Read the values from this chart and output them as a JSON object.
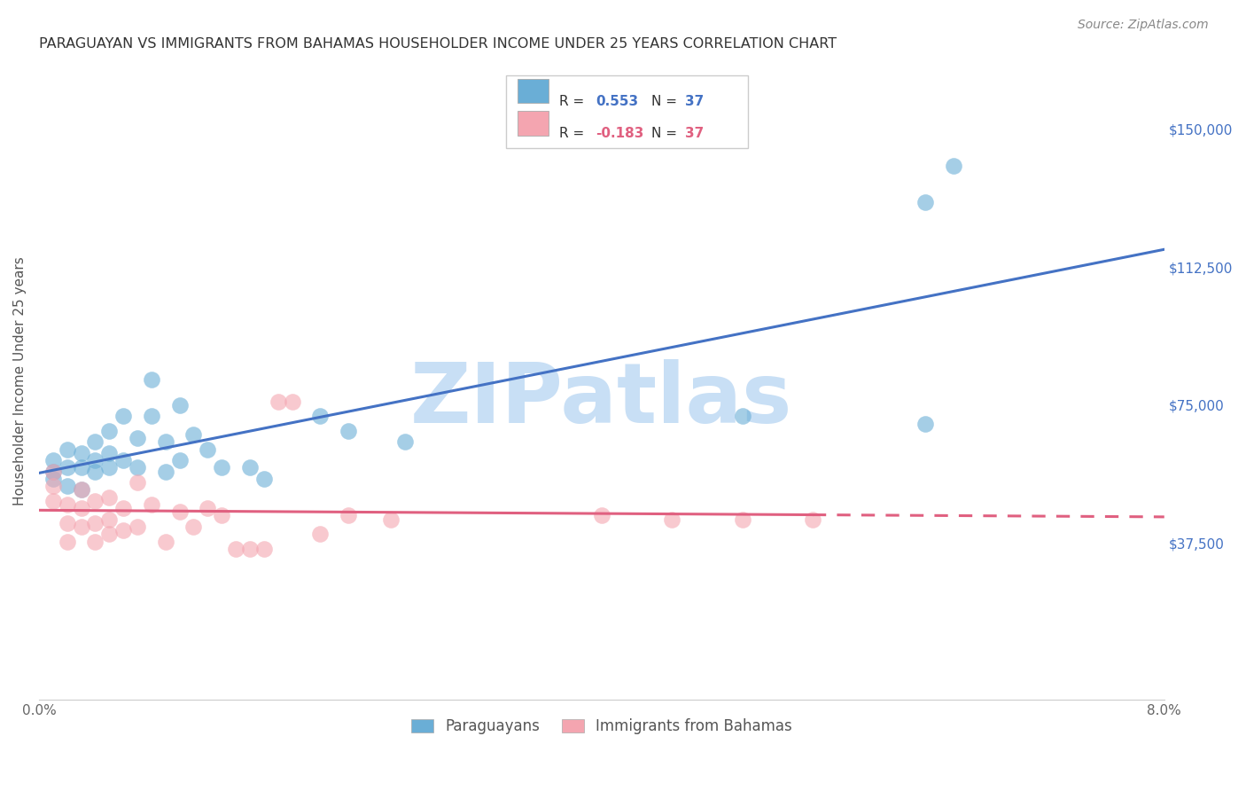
{
  "title": "PARAGUAYAN VS IMMIGRANTS FROM BAHAMAS HOUSEHOLDER INCOME UNDER 25 YEARS CORRELATION CHART",
  "source": "Source: ZipAtlas.com",
  "ylabel": "Householder Income Under 25 years",
  "x_min": 0.0,
  "x_max": 0.08,
  "y_min": -5000,
  "y_max": 168000,
  "x_ticks": [
    0.0,
    0.01,
    0.02,
    0.03,
    0.04,
    0.05,
    0.06,
    0.07,
    0.08
  ],
  "x_tick_labels": [
    "0.0%",
    "",
    "",
    "",
    "",
    "",
    "",
    "",
    "8.0%"
  ],
  "y_tick_vals": [
    37500,
    75000,
    112500,
    150000
  ],
  "y_tick_labels": [
    "$37,500",
    "$75,000",
    "$112,500",
    "$150,000"
  ],
  "blue_color": "#6aaed6",
  "pink_color": "#f4a5b0",
  "line_blue": "#4472c4",
  "line_pink": "#e06080",
  "watermark": "ZIPatlas",
  "watermark_color": "#c8dff5",
  "paraguayan_x": [
    0.001,
    0.001,
    0.001,
    0.002,
    0.002,
    0.002,
    0.003,
    0.003,
    0.003,
    0.004,
    0.004,
    0.004,
    0.005,
    0.005,
    0.005,
    0.006,
    0.006,
    0.007,
    0.007,
    0.008,
    0.008,
    0.009,
    0.009,
    0.01,
    0.01,
    0.011,
    0.012,
    0.013,
    0.015,
    0.016,
    0.02,
    0.022,
    0.026,
    0.05,
    0.063,
    0.063,
    0.065
  ],
  "paraguayan_y": [
    57000,
    60000,
    55000,
    63000,
    58000,
    53000,
    62000,
    58000,
    52000,
    65000,
    60000,
    57000,
    68000,
    62000,
    58000,
    72000,
    60000,
    66000,
    58000,
    82000,
    72000,
    65000,
    57000,
    75000,
    60000,
    67000,
    63000,
    58000,
    58000,
    55000,
    72000,
    68000,
    65000,
    72000,
    70000,
    130000,
    140000
  ],
  "bahamas_x": [
    0.001,
    0.001,
    0.001,
    0.002,
    0.002,
    0.002,
    0.003,
    0.003,
    0.003,
    0.004,
    0.004,
    0.004,
    0.005,
    0.005,
    0.005,
    0.006,
    0.006,
    0.007,
    0.007,
    0.008,
    0.009,
    0.01,
    0.011,
    0.012,
    0.013,
    0.014,
    0.015,
    0.016,
    0.017,
    0.018,
    0.02,
    0.022,
    0.025,
    0.04,
    0.045,
    0.05,
    0.055
  ],
  "bahamas_y": [
    57000,
    53000,
    49000,
    48000,
    43000,
    38000,
    52000,
    47000,
    42000,
    49000,
    43000,
    38000,
    50000,
    44000,
    40000,
    47000,
    41000,
    54000,
    42000,
    48000,
    38000,
    46000,
    42000,
    47000,
    45000,
    36000,
    36000,
    36000,
    76000,
    76000,
    40000,
    45000,
    44000,
    45000,
    44000,
    44000,
    44000
  ],
  "background_color": "#ffffff",
  "grid_color": "#d0d8e8"
}
